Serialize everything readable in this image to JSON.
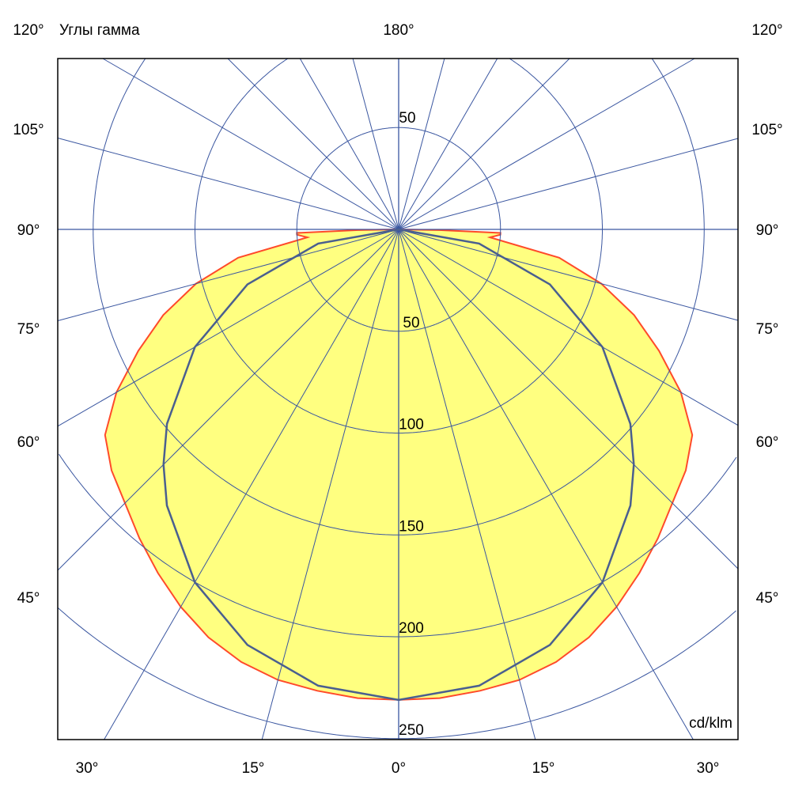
{
  "chart_data": {
    "type": "polar",
    "title": "Углы гамма",
    "unit": "cd/klm",
    "radial_ticks": [
      50,
      100,
      150,
      200,
      250
    ],
    "radial_max_visible": 250,
    "angle_step_deg": 15,
    "grid": true,
    "top_label": "180°",
    "side_labels": [
      {
        "angle": 120,
        "text": "120°"
      },
      {
        "angle": 105,
        "text": "105°"
      },
      {
        "angle": 90,
        "text": "90°"
      },
      {
        "angle": 75,
        "text": "75°"
      },
      {
        "angle": 60,
        "text": "60°"
      },
      {
        "angle": 45,
        "text": "45°"
      }
    ],
    "bottom_labels": [
      {
        "angle": -30,
        "text": "30°"
      },
      {
        "angle": -15,
        "text": "15°"
      },
      {
        "angle": 0,
        "text": "0°"
      },
      {
        "angle": 15,
        "text": "15°"
      },
      {
        "angle": 30,
        "text": "30°"
      }
    ],
    "top_ring_label": "50",
    "ring_labels": [
      "50",
      "100",
      "150",
      "200",
      "250"
    ],
    "series": [
      {
        "color": "#ff4a2a",
        "fill": "#ffff80",
        "gamma": [
          0,
          5,
          10,
          15,
          20,
          25,
          30,
          35,
          40,
          45,
          50,
          55,
          60,
          65,
          70,
          75,
          80,
          85,
          87,
          88,
          89,
          90
        ],
        "values": [
          231,
          231,
          230,
          229,
          226,
          221,
          214,
          206,
          198,
          190,
          184,
          176,
          160,
          141,
          123,
          103,
          80,
          45,
          50,
          50,
          20,
          0
        ]
      },
      {
        "color": "#4a5f8f",
        "gamma": [
          0,
          10,
          20,
          30,
          40,
          45,
          50,
          60,
          70,
          80,
          90
        ],
        "values": [
          231,
          227.5,
          217.1,
          200.1,
          177,
          163.3,
          148.5,
          115.5,
          79,
          40.1,
          0
        ]
      }
    ],
    "colors": {
      "grid": "#3a56a0",
      "frame": "#000000"
    }
  }
}
